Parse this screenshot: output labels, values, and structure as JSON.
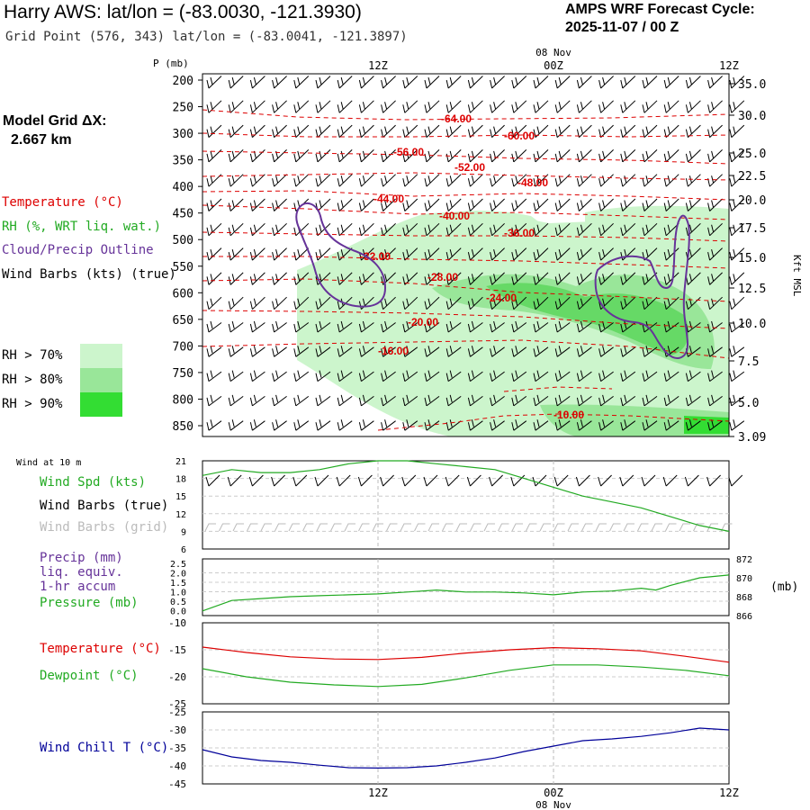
{
  "header": {
    "title": "Harry AWS:  lat/lon = (-83.0030, -121.3930)",
    "subtitle": "Grid Point (576, 343) lat/lon = (-83.0041, -121.3897)",
    "cycle_line1": "AMPS WRF Forecast Cycle:",
    "cycle_line2": "2025-11-07 / 00  Z"
  },
  "model_grid": {
    "label": "Model Grid ΔX:",
    "value": "2.667 km"
  },
  "colors": {
    "temperature": "#dd0000",
    "rh": "#22aa22",
    "cloud": "#663399",
    "wind": "#000000",
    "wind_grid": "#bbbbbb",
    "precip": "#663399",
    "wind_chill": "#000099",
    "rh70": "#ccf5cc",
    "rh80": "#99e699",
    "rh90": "#33dd33"
  },
  "legend": {
    "temperature": "Temperature (°C)",
    "rh": "RH (%, WRT liq. wat.)",
    "cloud": "Cloud/Precip Outline",
    "wind": "Wind Barbs (kts) (true)",
    "rh70": "RH > 70%",
    "rh80": "RH > 80%",
    "rh90": "RH > 90%"
  },
  "time_axis": {
    "top_labels": [
      "12Z",
      "00Z",
      "12Z"
    ],
    "date_label": "08 Nov",
    "bottom_labels": [
      "12Z",
      "00Z",
      "12Z"
    ]
  },
  "cross_section": {
    "y_axis_label": "P (mb)",
    "pressure_ticks": [
      "200",
      "250",
      "300",
      "350",
      "400",
      "450",
      "500",
      "550",
      "600",
      "650",
      "700",
      "750",
      "800",
      "850"
    ],
    "height_ticks": [
      "35.0",
      "30.0",
      "25.0",
      "22.5",
      "20.0",
      "17.5",
      "15.0",
      "12.5",
      "10.0",
      "7.5",
      "5.0",
      "3.09"
    ],
    "height_axis_label": "Kft MSL",
    "isotherm_labels": [
      "-64.00",
      "-60.00",
      "-56.00",
      "-52.00",
      "-48.00",
      "-44.00",
      "-40.00",
      "-36.00",
      "-32.00",
      "-28.00",
      "-24.00",
      "-20.00",
      "-16.00",
      "-10.00"
    ]
  },
  "wind10m": {
    "caption": "Wind at 10 m",
    "label_speed": "Wind Spd (kts)",
    "label_barbs": "Wind Barbs (true)",
    "label_grid": "Wind Barbs (grid)",
    "y_ticks": [
      "21",
      "18",
      "15",
      "12",
      "9",
      "6"
    ]
  },
  "precip": {
    "label1": "Precip (mm)",
    "label2": "liq. equiv.",
    "label3": "1-hr accum",
    "label_pressure": "Pressure (mb)",
    "left_ticks": [
      "2.5",
      "2.0",
      "1.5",
      "1.0",
      "0.5",
      "0.0"
    ],
    "right_ticks": [
      "872",
      "870",
      "868",
      "866"
    ],
    "right_unit": "(mb)"
  },
  "temp_panel": {
    "label_t": "Temperature (°C)",
    "label_td": "Dewpoint (°C)",
    "y_ticks": [
      "-10",
      "-15",
      "-20",
      "-25"
    ]
  },
  "chill_panel": {
    "label": "Wind Chill T (°C)",
    "y_ticks": [
      "-25",
      "-30",
      "-35",
      "-40",
      "-45"
    ]
  },
  "chart_data": [
    {
      "type": "line",
      "title": "Wind at 10 m",
      "ylabel": "Wind Spd (kts)",
      "ylim": [
        6,
        21
      ],
      "x_hours": [
        0,
        2,
        4,
        6,
        8,
        10,
        12,
        14,
        16,
        18,
        20,
        22,
        24,
        26,
        28,
        30,
        32,
        34,
        36
      ],
      "series": [
        {
          "name": "Wind Spd (kts)",
          "values": [
            18.5,
            19.5,
            19,
            19,
            19.5,
            20.5,
            21,
            21,
            20.5,
            20,
            19.5,
            18,
            16.5,
            15,
            14,
            13,
            11.5,
            10,
            9
          ]
        }
      ]
    },
    {
      "type": "line",
      "title": "Pressure (mb)",
      "ylabel": "Pressure (mb)",
      "ylim": [
        866,
        872
      ],
      "x_hours": [
        0,
        2,
        4,
        6,
        8,
        10,
        12,
        14,
        16,
        18,
        20,
        22,
        24,
        26,
        28,
        30,
        31,
        32,
        34,
        36
      ],
      "series": [
        {
          "name": "Pressure (mb)",
          "values": [
            866.5,
            867.6,
            867.8,
            868,
            868.1,
            868.2,
            868.3,
            868.5,
            868.7,
            868.5,
            868.5,
            868.4,
            868.2,
            868.5,
            868.6,
            868.9,
            868.7,
            869.2,
            870,
            870.3
          ]
        }
      ]
    },
    {
      "type": "line",
      "title": "Temperature / Dewpoint",
      "ylabel": "°C",
      "ylim": [
        -25,
        -10
      ],
      "x_hours": [
        0,
        3,
        6,
        9,
        12,
        15,
        18,
        21,
        24,
        27,
        30,
        33,
        36
      ],
      "series": [
        {
          "name": "Temperature (°C)",
          "values": [
            -14.5,
            -15.5,
            -16.3,
            -16.7,
            -16.8,
            -16.4,
            -15.6,
            -15,
            -14.6,
            -14.8,
            -15.2,
            -16.2,
            -17.3
          ]
        },
        {
          "name": "Dewpoint (°C)",
          "values": [
            -18.5,
            -20,
            -21,
            -21.5,
            -21.8,
            -21.4,
            -20.2,
            -18.8,
            -17.8,
            -17.8,
            -18.2,
            -18.8,
            -19.8
          ]
        }
      ]
    },
    {
      "type": "line",
      "title": "Wind Chill",
      "ylabel": "Wind Chill T (°C)",
      "ylim": [
        -45,
        -25
      ],
      "x_hours": [
        0,
        2,
        4,
        6,
        8,
        10,
        12,
        14,
        16,
        18,
        20,
        22,
        24,
        26,
        28,
        30,
        32,
        34,
        36
      ],
      "series": [
        {
          "name": "Wind Chill T (°C)",
          "values": [
            -35.5,
            -37.5,
            -38.5,
            -39,
            -39.8,
            -40.5,
            -40.6,
            -40.5,
            -40,
            -39,
            -37.8,
            -36,
            -34.5,
            -33,
            -32.5,
            -31.8,
            -30.8,
            -29.5,
            -30
          ]
        }
      ]
    }
  ]
}
